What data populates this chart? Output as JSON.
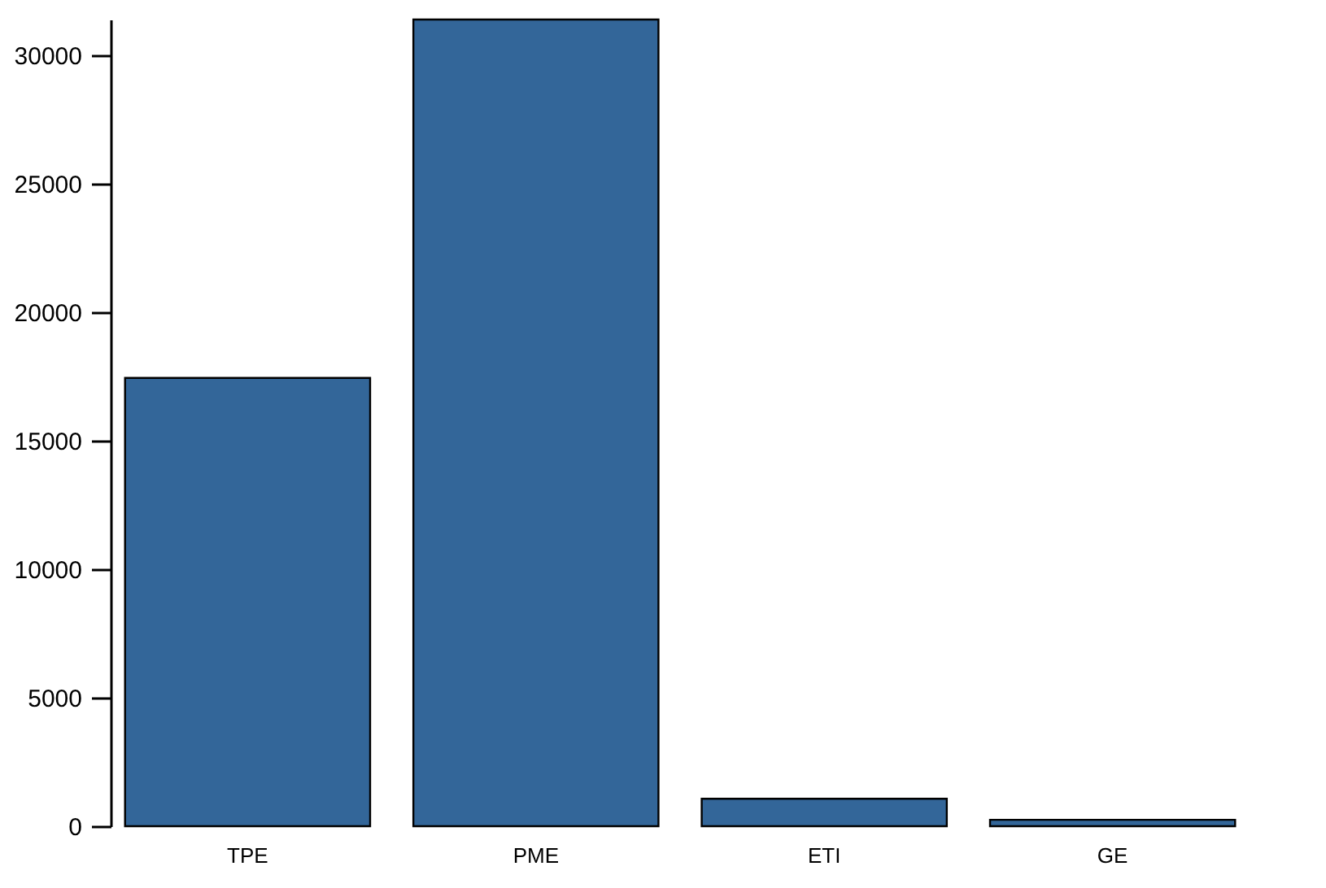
{
  "chart_data": {
    "type": "bar",
    "categories": [
      "TPE",
      "PME",
      "ETI",
      "GE"
    ],
    "values": [
      17450,
      31400,
      1070,
      250
    ],
    "color": "#336699",
    "ylim": [
      0,
      31400
    ],
    "yticks": [
      0,
      5000,
      10000,
      15000,
      20000,
      25000,
      30000
    ],
    "grid": false
  }
}
